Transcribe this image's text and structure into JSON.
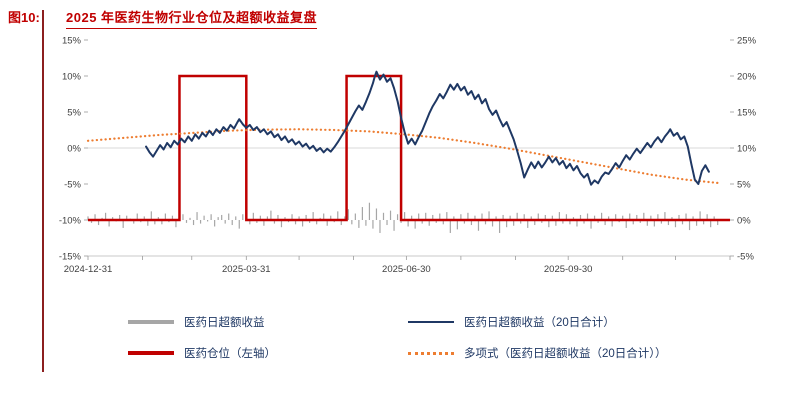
{
  "header": {
    "figure_label": "图10:",
    "title": "2025 年医药生物行业仓位及超额收益复盘"
  },
  "colors": {
    "title_red": "#c00000",
    "accent_rule": "#8c1f1f",
    "grid_line": "#d9d9d9",
    "axis_text": "#404040",
    "legend_text": "#1f3864"
  },
  "chart_data": {
    "type": "line",
    "title": "2025 年医药生物行业仓位及超额收益复盘",
    "x_axis": {
      "tick_labels": [
        "2024-12-31",
        "2025-03-31",
        "2025-06-30",
        "2025-09-30"
      ],
      "tick_days": [
        0,
        90,
        181,
        273
      ],
      "domain_days": [
        0,
        365
      ],
      "month_tick_days": [
        0,
        31,
        59,
        90,
        120,
        151,
        181,
        212,
        243,
        273,
        304,
        334,
        365
      ]
    },
    "left_axis": {
      "range": [
        -15,
        15
      ],
      "ticks": [
        "15%",
        "10%",
        "5%",
        "0%",
        "-5%",
        "-10%",
        "-15%"
      ]
    },
    "right_axis": {
      "range": [
        -5,
        25
      ],
      "ticks": [
        "25%",
        "20%",
        "15%",
        "10%",
        "5%",
        "0%",
        "-5%"
      ]
    },
    "series": [
      {
        "name": "医药日超额收益",
        "type": "bar",
        "axis": "right",
        "color": "#a6a6a6",
        "baseline": 0,
        "start_day": 0,
        "step_days": 2,
        "values": [
          0.5,
          -0.4,
          0.8,
          -0.7,
          0.3,
          1.0,
          -0.9,
          0.4,
          -0.2,
          0.7,
          -1.1,
          0.6,
          0.2,
          -0.5,
          0.9,
          -0.3,
          0.5,
          -0.8,
          1.2,
          -0.6,
          0.4,
          -0.6,
          0.9,
          -0.3,
          0.6,
          -1.0,
          0.5,
          0.8,
          -0.4,
          0.3,
          -0.7,
          1.1,
          -0.5,
          0.6,
          -0.2,
          0.8,
          -0.9,
          0.4,
          0.7,
          -0.5,
          0.9,
          -0.7,
          0.5,
          -1.2,
          0.8,
          0.3,
          -0.6,
          1.0,
          -0.4,
          0.6,
          -0.8,
          0.5,
          1.3,
          -0.5,
          0.7,
          -1.0,
          0.4,
          -0.3,
          0.8,
          -0.6,
          0.5,
          -0.9,
          0.7,
          -0.4,
          1.1,
          -0.6,
          0.3,
          0.9,
          -0.8,
          0.6,
          -0.3,
          1.2,
          -0.7,
          0.5,
          1.5,
          -0.6,
          0.9,
          -1.1,
          1.8,
          -0.8,
          2.4,
          -1.2,
          1.6,
          -1.8,
          1.0,
          -0.7,
          1.3,
          -1.5,
          0.8,
          -0.4,
          1.1,
          -0.9,
          0.6,
          -1.2,
          0.9,
          -0.5,
          1.0,
          -0.8,
          0.7,
          -0.4,
          0.9,
          -0.6,
          1.1,
          -1.8,
          0.5,
          -1.3,
          0.8,
          -0.5,
          1.0,
          -0.7,
          0.6,
          -1.5,
          0.9,
          -0.6,
          1.2,
          -0.9,
          0.5,
          -1.8,
          0.7,
          -1.0,
          0.6,
          -0.8,
          1.0,
          -0.5,
          0.8,
          -1.1,
          0.5,
          -0.7,
          0.9,
          -0.4,
          0.7,
          -1.0,
          0.6,
          -0.8,
          1.1,
          -0.5,
          0.8,
          -0.6,
          0.4,
          -0.9,
          0.7,
          -0.5,
          0.9,
          -1.2,
          0.6,
          -0.4,
          1.0,
          -0.7,
          0.5,
          -0.9,
          0.8,
          -0.3,
          0.6,
          -1.1,
          0.9,
          -0.6,
          0.7,
          -0.4,
          1.0,
          -0.8,
          0.6,
          -0.9,
          0.8,
          -0.5,
          1.1,
          -0.7,
          0.4,
          -1.0,
          0.7,
          -0.6,
          0.9,
          -1.4,
          0.5,
          -0.8,
          1.2,
          -0.6,
          0.8,
          -1.0,
          0.5,
          -0.7
        ]
      },
      {
        "name": "医药仓位（左轴）",
        "type": "step",
        "axis": "left",
        "color": "#c00000",
        "segments": [
          {
            "from_day": 0,
            "to_day": 52,
            "value": -10
          },
          {
            "from_day": 52,
            "to_day": 90,
            "value": 10
          },
          {
            "from_day": 90,
            "to_day": 147,
            "value": -10
          },
          {
            "from_day": 147,
            "to_day": 178,
            "value": 10
          },
          {
            "from_day": 178,
            "to_day": 365,
            "value": -10
          }
        ]
      },
      {
        "name": "医药日超额收益（20日合计）",
        "type": "line",
        "axis": "right",
        "color": "#1f3864",
        "points": [
          [
            33,
            10.2
          ],
          [
            35,
            9.4
          ],
          [
            37,
            8.8
          ],
          [
            39,
            9.6
          ],
          [
            41,
            10.4
          ],
          [
            43,
            9.8
          ],
          [
            45,
            10.7
          ],
          [
            47,
            10.1
          ],
          [
            49,
            11.0
          ],
          [
            51,
            10.5
          ],
          [
            53,
            11.3
          ],
          [
            55,
            10.8
          ],
          [
            57,
            11.6
          ],
          [
            59,
            11.0
          ],
          [
            61,
            11.9
          ],
          [
            63,
            11.3
          ],
          [
            65,
            12.1
          ],
          [
            67,
            11.6
          ],
          [
            69,
            12.4
          ],
          [
            71,
            11.8
          ],
          [
            73,
            12.6
          ],
          [
            75,
            12.1
          ],
          [
            77,
            12.9
          ],
          [
            79,
            12.4
          ],
          [
            81,
            13.2
          ],
          [
            83,
            12.7
          ],
          [
            85,
            13.6
          ],
          [
            86,
            14.0
          ],
          [
            88,
            13.3
          ],
          [
            90,
            12.8
          ],
          [
            92,
            13.2
          ],
          [
            94,
            12.5
          ],
          [
            96,
            12.9
          ],
          [
            98,
            12.2
          ],
          [
            100,
            12.6
          ],
          [
            102,
            11.9
          ],
          [
            104,
            12.3
          ],
          [
            106,
            11.5
          ],
          [
            108,
            11.9
          ],
          [
            110,
            11.1
          ],
          [
            112,
            11.6
          ],
          [
            114,
            10.8
          ],
          [
            116,
            11.2
          ],
          [
            118,
            10.5
          ],
          [
            120,
            10.9
          ],
          [
            122,
            10.2
          ],
          [
            124,
            10.6
          ],
          [
            126,
            9.9
          ],
          [
            128,
            10.3
          ],
          [
            130,
            9.6
          ],
          [
            132,
            10.0
          ],
          [
            134,
            9.4
          ],
          [
            136,
            9.9
          ],
          [
            138,
            9.5
          ],
          [
            140,
            10.1
          ],
          [
            142,
            10.8
          ],
          [
            144,
            11.6
          ],
          [
            146,
            12.4
          ],
          [
            148,
            13.3
          ],
          [
            150,
            14.2
          ],
          [
            152,
            15.1
          ],
          [
            154,
            15.9
          ],
          [
            156,
            15.3
          ],
          [
            158,
            16.4
          ],
          [
            160,
            17.6
          ],
          [
            162,
            19.0
          ],
          [
            163,
            19.9
          ],
          [
            164,
            20.6
          ],
          [
            166,
            19.5
          ],
          [
            168,
            20.2
          ],
          [
            170,
            19.2
          ],
          [
            172,
            19.7
          ],
          [
            174,
            18.3
          ],
          [
            176,
            16.5
          ],
          [
            178,
            14.2
          ],
          [
            180,
            12.2
          ],
          [
            182,
            10.6
          ],
          [
            184,
            11.3
          ],
          [
            186,
            10.5
          ],
          [
            188,
            11.5
          ],
          [
            190,
            12.4
          ],
          [
            192,
            13.6
          ],
          [
            194,
            14.8
          ],
          [
            196,
            15.8
          ],
          [
            198,
            16.6
          ],
          [
            200,
            17.5
          ],
          [
            202,
            16.9
          ],
          [
            204,
            17.8
          ],
          [
            206,
            18.8
          ],
          [
            208,
            18.1
          ],
          [
            210,
            18.9
          ],
          [
            212,
            18.0
          ],
          [
            214,
            18.5
          ],
          [
            216,
            17.4
          ],
          [
            218,
            17.9
          ],
          [
            220,
            16.8
          ],
          [
            222,
            17.4
          ],
          [
            224,
            16.2
          ],
          [
            226,
            16.8
          ],
          [
            228,
            15.4
          ],
          [
            230,
            14.6
          ],
          [
            232,
            15.2
          ],
          [
            234,
            14.0
          ],
          [
            236,
            13.0
          ],
          [
            238,
            13.6
          ],
          [
            240,
            12.4
          ],
          [
            242,
            11.2
          ],
          [
            244,
            9.6
          ],
          [
            246,
            7.9
          ],
          [
            248,
            5.9
          ],
          [
            250,
            7.0
          ],
          [
            252,
            8.0
          ],
          [
            254,
            7.2
          ],
          [
            256,
            8.1
          ],
          [
            258,
            7.3
          ],
          [
            260,
            8.0
          ],
          [
            262,
            8.8
          ],
          [
            264,
            8.0
          ],
          [
            266,
            8.6
          ],
          [
            268,
            7.7
          ],
          [
            270,
            8.2
          ],
          [
            272,
            7.2
          ],
          [
            274,
            7.8
          ],
          [
            276,
            6.9
          ],
          [
            278,
            7.5
          ],
          [
            280,
            6.5
          ],
          [
            282,
            5.9
          ],
          [
            284,
            6.4
          ],
          [
            286,
            4.9
          ],
          [
            288,
            5.5
          ],
          [
            290,
            5.1
          ],
          [
            292,
            6.0
          ],
          [
            294,
            6.6
          ],
          [
            296,
            6.4
          ],
          [
            298,
            7.1
          ],
          [
            300,
            7.9
          ],
          [
            302,
            7.3
          ],
          [
            304,
            8.2
          ],
          [
            306,
            9.0
          ],
          [
            308,
            8.4
          ],
          [
            310,
            9.2
          ],
          [
            312,
            9.9
          ],
          [
            314,
            9.3
          ],
          [
            316,
            10.0
          ],
          [
            318,
            10.7
          ],
          [
            320,
            10.1
          ],
          [
            322,
            10.9
          ],
          [
            324,
            11.5
          ],
          [
            326,
            10.8
          ],
          [
            328,
            11.6
          ],
          [
            330,
            12.2
          ],
          [
            331,
            12.6
          ],
          [
            333,
            11.7
          ],
          [
            335,
            12.1
          ],
          [
            337,
            11.2
          ],
          [
            339,
            11.6
          ],
          [
            341,
            10.2
          ],
          [
            343,
            7.8
          ],
          [
            345,
            5.6
          ],
          [
            347,
            5.0
          ],
          [
            349,
            6.8
          ],
          [
            351,
            7.6
          ],
          [
            353,
            6.7
          ]
        ]
      },
      {
        "name": "多项式（医药日超额收益（20日合计））",
        "type": "line",
        "axis": "right",
        "color": "#ed7d31",
        "dash": "dotted",
        "points": [
          [
            0,
            11.0
          ],
          [
            20,
            11.4
          ],
          [
            40,
            11.8
          ],
          [
            60,
            12.1
          ],
          [
            80,
            12.4
          ],
          [
            100,
            12.55
          ],
          [
            120,
            12.6
          ],
          [
            140,
            12.5
          ],
          [
            160,
            12.3
          ],
          [
            180,
            11.9
          ],
          [
            200,
            11.4
          ],
          [
            220,
            10.7
          ],
          [
            240,
            9.9
          ],
          [
            260,
            9.0
          ],
          [
            280,
            8.1
          ],
          [
            300,
            7.2
          ],
          [
            320,
            6.3
          ],
          [
            340,
            5.6
          ],
          [
            360,
            5.1
          ]
        ]
      }
    ]
  }
}
